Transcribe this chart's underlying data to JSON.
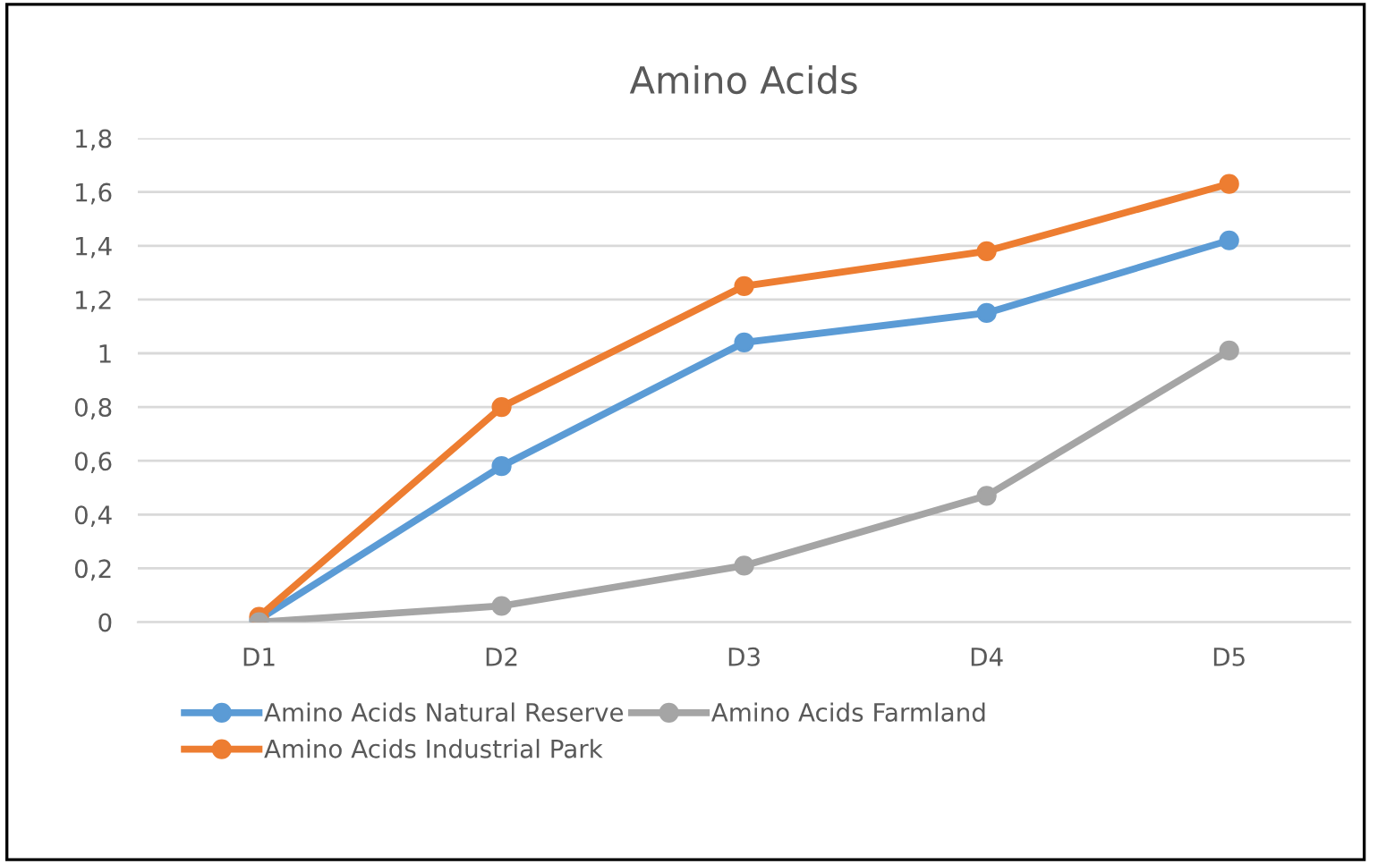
{
  "chart_data": {
    "type": "line",
    "title": "Amino Acids",
    "categories": [
      "D1",
      "D2",
      "D3",
      "D4",
      "D5"
    ],
    "series": [
      {
        "name": "Amino Acids Natural Reserve",
        "color": "#5b9bd5",
        "values": [
          0.01,
          0.58,
          1.04,
          1.15,
          1.42
        ]
      },
      {
        "name": "Amino Acids Industrial Park",
        "color": "#ed7d31",
        "values": [
          0.02,
          0.8,
          1.25,
          1.38,
          1.63
        ]
      },
      {
        "name": "Amino Acids Farmland",
        "color": "#a5a5a5",
        "values": [
          0,
          0.06,
          0.21,
          0.47,
          1.01
        ]
      }
    ],
    "ylim": [
      0,
      1.8
    ],
    "yticks": [
      0,
      {
        "value": 0.2,
        "label": "0,2"
      },
      {
        "value": 0.4,
        "label": "0,4"
      },
      {
        "value": 0.6,
        "label": "0,6"
      },
      {
        "value": 0.8,
        "label": "0,8"
      },
      1,
      {
        "value": 1.2,
        "label": "1,2"
      },
      {
        "value": 1.4,
        "label": "1,4"
      },
      {
        "value": 1.6,
        "label": "1,6"
      },
      {
        "value": 1.8,
        "label": "1,8"
      }
    ],
    "grid": "y",
    "legend": "bottom",
    "marker": "circle",
    "line_style": "solid"
  }
}
